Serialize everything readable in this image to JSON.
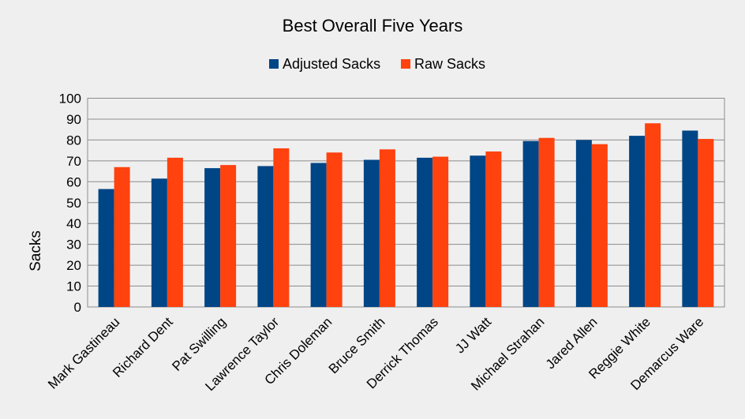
{
  "chart_data": {
    "type": "bar",
    "title": "Best Overall Five Years",
    "xlabel": "",
    "ylabel": "Sacks",
    "ylim": [
      0,
      100
    ],
    "yticks": [
      0,
      10,
      20,
      30,
      40,
      50,
      60,
      70,
      80,
      90,
      100
    ],
    "grid": true,
    "legend_position": "top",
    "categories": [
      "Mark Gastineau",
      "Richard Dent",
      "Pat Swilling",
      "Lawrence Taylor",
      "Chris Doleman",
      "Bruce Smith",
      "Derrick Thomas",
      "JJ Watt",
      "Michael Strahan",
      "Jared Allen",
      "Reggie White",
      "Demarcus Ware"
    ],
    "series": [
      {
        "name": "Adjusted Sacks",
        "color": "#004586",
        "values": [
          56.5,
          61.5,
          66.5,
          67.5,
          69,
          70.5,
          71.5,
          72.5,
          79.5,
          80,
          82,
          84.5
        ]
      },
      {
        "name": "Raw Sacks",
        "color": "#ff420e",
        "values": [
          67,
          71.5,
          68,
          76,
          74,
          75.5,
          72,
          74.5,
          81,
          78,
          88,
          80.5
        ]
      }
    ]
  }
}
